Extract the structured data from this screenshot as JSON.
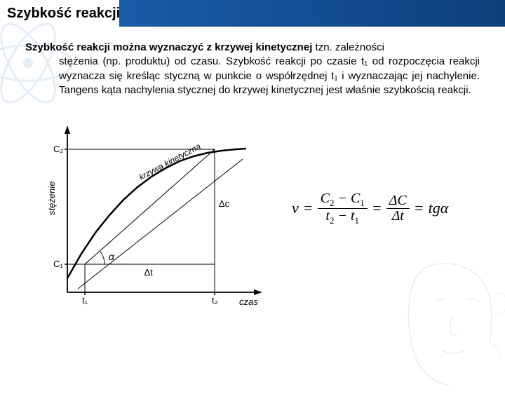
{
  "header": {
    "title": "Szybkość reakcji"
  },
  "paragraph": {
    "lead_bold": "Szybkość reakcji można wyznaczyć z krzywej kinetycznej",
    "body_line1_rest": " tzn. zależności",
    "body_rest": "stężenia (np. produktu) od czasu. Szybkość reakcji po czasie t₁ od rozpoczęcia reakcji wyznacza się kreśląc styczną w punkcie o współrzędnej t₁ i wyznaczając jej nachylenie. Tangens kąta nachylenia stycznej do krzywej kinetycznej jest właśnie szybkością reakcji."
  },
  "chart": {
    "type": "line",
    "x_axis_label": "czas",
    "y_axis_label": "stężenie",
    "y_ticks": [
      "C₁",
      "C₂"
    ],
    "x_ticks": [
      "t₁",
      "t₂"
    ],
    "curve_label": "krzywa kinetyczna",
    "angle_label": "α",
    "delta_y_label": "Δc",
    "delta_x_label": "Δt",
    "line_color": "#000000",
    "background_color": "#ffffff",
    "axis_color": "#000000",
    "curve_points": [
      [
        30,
        230
      ],
      [
        50,
        195
      ],
      [
        70,
        165
      ],
      [
        90,
        140
      ],
      [
        110,
        118
      ],
      [
        130,
        100
      ],
      [
        150,
        85
      ],
      [
        170,
        73
      ],
      [
        190,
        63
      ],
      [
        210,
        56
      ],
      [
        230,
        51
      ],
      [
        250,
        48
      ],
      [
        270,
        46
      ],
      [
        285,
        45
      ]
    ],
    "tangent_p1": [
      45,
      245
    ],
    "tangent_p2": [
      280,
      60
    ],
    "c1_y": 210,
    "c2_y": 46,
    "t1_x": 55,
    "t2_x": 240
  },
  "formula": {
    "lhs": "v",
    "eq": "=",
    "frac1_num_a": "C",
    "frac1_num_a_sub": "2",
    "frac1_num_minus": " − ",
    "frac1_num_b": "C",
    "frac1_num_b_sub": "1",
    "frac1_den_a": "t",
    "frac1_den_a_sub": "2",
    "frac1_den_minus": " − ",
    "frac1_den_b": "t",
    "frac1_den_b_sub": "1",
    "frac2_num": "ΔC",
    "frac2_den": "Δt",
    "tail": "tgα"
  }
}
